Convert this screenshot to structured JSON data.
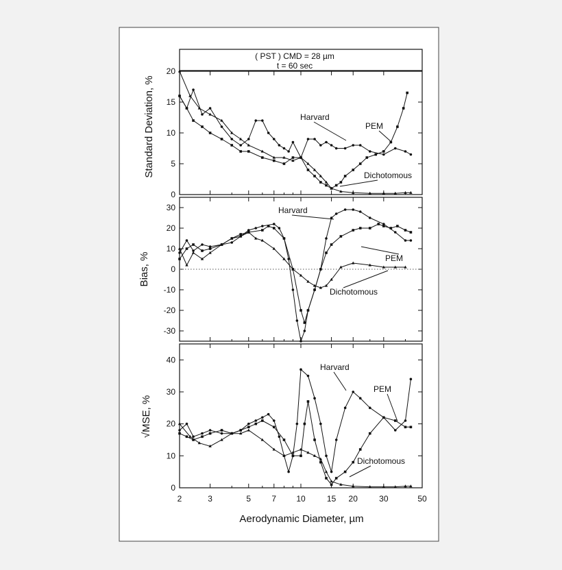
{
  "header": {
    "line1": "( PST )  CMD = 28 µm",
    "line2": "t = 60 sec"
  },
  "x_axis": {
    "title": "Aerodynamic Diameter, µm",
    "scale": "log",
    "range": [
      2,
      50
    ],
    "ticks": [
      {
        "v": 2,
        "label": "2"
      },
      {
        "v": 3,
        "label": "3"
      },
      {
        "v": 5,
        "label": "5"
      },
      {
        "v": 7,
        "label": "7"
      },
      {
        "v": 10,
        "label": "10"
      },
      {
        "v": 15,
        "label": "15"
      },
      {
        "v": 20,
        "label": "20"
      },
      {
        "v": 30,
        "label": "30"
      },
      {
        "v": 50,
        "label": "50"
      }
    ],
    "minor_ticks": [
      4,
      6,
      8,
      9,
      25,
      40
    ]
  },
  "chart_data": [
    {
      "type": "line",
      "ylabel": "Standard Deviation,  %",
      "ylim": [
        0,
        20
      ],
      "yticks": [
        0,
        5,
        10,
        15,
        20
      ],
      "legend": "annotations",
      "series": [
        {
          "name": "Harvard",
          "marker": "circle",
          "x": [
            2,
            2.2,
            2.4,
            2.7,
            3,
            3.5,
            4,
            4.5,
            5,
            5.5,
            6,
            6.5,
            7,
            7.5,
            8,
            8.5,
            9,
            10,
            11,
            12,
            13,
            14,
            15,
            16,
            18,
            20,
            22,
            25,
            30,
            35,
            40,
            43
          ],
          "y": [
            16,
            14,
            17,
            13,
            14,
            11,
            9,
            8,
            9,
            12,
            12,
            10,
            9,
            8,
            7.5,
            7,
            8.5,
            6,
            9,
            9,
            8,
            8.5,
            8,
            7.5,
            7.5,
            8,
            8,
            7,
            6.5,
            7.5,
            7,
            6.5
          ]
        },
        {
          "name": "PEM",
          "marker": "square",
          "x": [
            2,
            2.2,
            2.4,
            2.7,
            3,
            3.5,
            4,
            4.5,
            5,
            6,
            7,
            8,
            9,
            10,
            11,
            12,
            13,
            14,
            15,
            16,
            17,
            18,
            20,
            22,
            24,
            27,
            30,
            33,
            36,
            39,
            41
          ],
          "y": [
            16,
            14,
            12,
            11,
            10,
            9,
            8,
            7,
            7,
            6,
            5.5,
            5,
            6,
            6,
            4,
            3,
            2,
            1.5,
            1,
            1.5,
            2,
            3,
            4,
            5,
            6,
            6.5,
            7,
            8.5,
            11,
            14,
            16.5
          ]
        },
        {
          "name": "Dichotomous",
          "marker": "triangle",
          "x": [
            2,
            2.3,
            2.6,
            3,
            3.5,
            4,
            4.5,
            5,
            6,
            7,
            8,
            9,
            10,
            11,
            12,
            13,
            14,
            15,
            17,
            20,
            25,
            30,
            35,
            40,
            43
          ],
          "y": [
            20,
            16,
            14,
            13,
            12,
            10,
            9,
            8,
            7,
            6,
            6,
            5.5,
            6,
            5,
            4,
            3,
            2,
            1,
            0.5,
            0.3,
            0.2,
            0.2,
            0.2,
            0.3,
            0.3
          ]
        }
      ],
      "annotations": [
        {
          "text": "Harvard",
          "series": "Harvard"
        },
        {
          "text": "PEM",
          "series": "PEM"
        },
        {
          "text": "Dichotomous",
          "series": "Dichotomous"
        }
      ]
    },
    {
      "type": "line",
      "ylabel": "Bias, %",
      "ylim": [
        -35,
        35
      ],
      "yticks": [
        -30,
        -20,
        -10,
        0,
        10,
        20,
        30
      ],
      "zero_line": true,
      "legend": "annotations",
      "series": [
        {
          "name": "Harvard",
          "marker": "circle",
          "x": [
            2,
            2.2,
            2.4,
            2.7,
            3,
            3.5,
            4,
            4.5,
            5,
            5.5,
            6,
            7,
            7.5,
            8,
            8.5,
            9,
            9.5,
            10,
            10.5,
            11,
            12,
            13,
            14,
            15,
            16,
            18,
            20,
            22,
            25,
            30,
            35,
            40,
            43
          ],
          "y": [
            8,
            14,
            9,
            12,
            11,
            12,
            13,
            16,
            19,
            20,
            21,
            22,
            20,
            15,
            5,
            -10,
            -25,
            -35,
            -30,
            -20,
            -10,
            0,
            15,
            25,
            27,
            29,
            29,
            28,
            25,
            22,
            18,
            14,
            14
          ]
        },
        {
          "name": "PEM",
          "marker": "square",
          "x": [
            2,
            2.2,
            2.4,
            2.7,
            3,
            3.5,
            4,
            4.5,
            5,
            6,
            6.5,
            7,
            8,
            9,
            10,
            10.5,
            11,
            12,
            13,
            14,
            15,
            17,
            20,
            22,
            25,
            28,
            30,
            33,
            36,
            40,
            43
          ],
          "y": [
            5,
            10,
            12,
            9,
            10,
            12,
            15,
            17,
            18,
            19,
            21,
            20,
            15,
            0,
            -20,
            -26,
            -20,
            -10,
            0,
            8,
            12,
            16,
            19,
            20,
            20,
            22,
            21,
            20,
            21,
            19,
            18
          ]
        },
        {
          "name": "Dichotomous",
          "marker": "triangle",
          "x": [
            2,
            2.2,
            2.4,
            2.7,
            3,
            3.5,
            4,
            4.5,
            5,
            5.5,
            6,
            7,
            8,
            9,
            10,
            11,
            12,
            13,
            14,
            15,
            17,
            20,
            25,
            30,
            35,
            40
          ],
          "y": [
            10,
            2,
            8,
            5,
            8,
            12,
            15,
            16,
            18,
            15,
            14,
            10,
            5,
            0,
            -3,
            -6,
            -8,
            -9,
            -8,
            -5,
            1,
            3,
            2,
            1,
            1,
            1
          ]
        }
      ],
      "annotations": [
        {
          "text": "Harvard",
          "series": "Harvard"
        },
        {
          "text": "PEM",
          "series": "PEM"
        },
        {
          "text": "Dichotomous",
          "series": "Dichotomous"
        }
      ]
    },
    {
      "type": "line",
      "ylabel": "√MSE, %",
      "ylim": [
        0,
        45
      ],
      "yticks": [
        0,
        10,
        20,
        30,
        40
      ],
      "legend": "annotations",
      "series": [
        {
          "name": "Harvard",
          "marker": "circle",
          "x": [
            2,
            2.2,
            2.4,
            2.7,
            3,
            3.5,
            4,
            4.5,
            5,
            5.5,
            6,
            6.5,
            7,
            7.5,
            8,
            8.5,
            9,
            9.5,
            10,
            11,
            12,
            13,
            14,
            15,
            16,
            18,
            20,
            22,
            25,
            30,
            35,
            40,
            43
          ],
          "y": [
            18,
            20,
            16,
            17,
            18,
            17,
            17,
            18,
            20,
            21,
            22,
            23,
            21,
            16,
            10,
            5,
            10,
            20,
            37,
            35,
            28,
            20,
            10,
            5,
            15,
            25,
            30,
            28,
            25,
            22,
            18,
            21,
            34
          ]
        },
        {
          "name": "PEM",
          "marker": "square",
          "x": [
            2,
            2.2,
            2.4,
            2.7,
            3,
            3.5,
            4,
            4.5,
            5,
            5.5,
            6,
            7,
            8,
            9,
            10,
            10.5,
            11,
            12,
            13,
            14,
            15,
            16,
            18,
            20,
            22,
            25,
            30,
            35,
            40,
            43
          ],
          "y": [
            17,
            16,
            15,
            16,
            17,
            18,
            17,
            18,
            19,
            20,
            21,
            19,
            15,
            10,
            10,
            20,
            27,
            15,
            8,
            3,
            1,
            3,
            5,
            8,
            12,
            17,
            22,
            21,
            19,
            19
          ]
        },
        {
          "name": "Dichotomous",
          "marker": "triangle",
          "x": [
            2,
            2.3,
            2.6,
            3,
            3.5,
            4,
            4.5,
            5,
            6,
            7,
            8,
            9,
            10,
            11,
            12,
            13,
            14,
            15,
            17,
            20,
            25,
            30,
            35,
            40,
            43
          ],
          "y": [
            20,
            16,
            14,
            13,
            15,
            17,
            17,
            18,
            15,
            12,
            10,
            11,
            12,
            11,
            10,
            9,
            5,
            2,
            1,
            0.5,
            0.3,
            0.3,
            0.3,
            0.5,
            0.5
          ]
        }
      ],
      "annotations": [
        {
          "text": "Harvard",
          "series": "Harvard"
        },
        {
          "text": "PEM",
          "series": "PEM"
        },
        {
          "text": "Dichotomous",
          "series": "Dichotomous"
        }
      ]
    }
  ]
}
